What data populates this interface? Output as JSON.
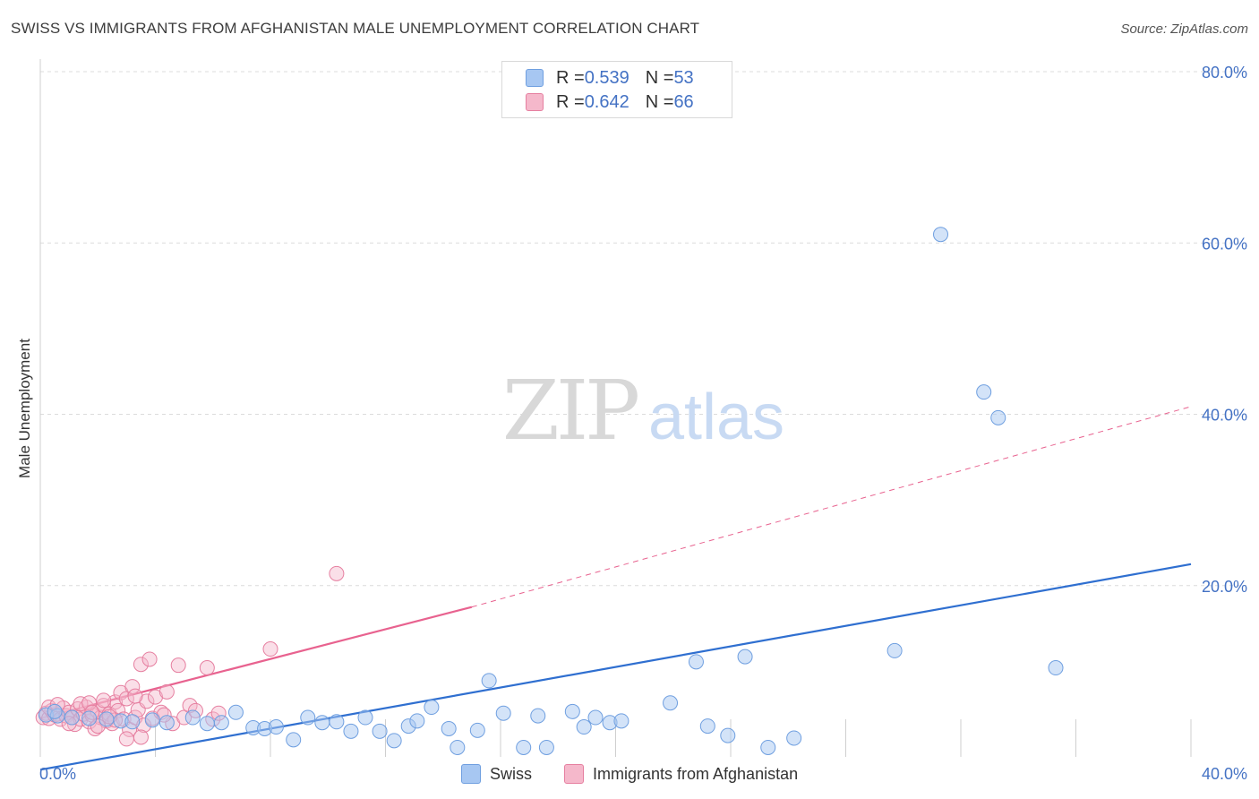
{
  "title": "SWISS VS IMMIGRANTS FROM AFGHANISTAN MALE UNEMPLOYMENT CORRELATION CHART",
  "source": "Source: ZipAtlas.com",
  "watermark": {
    "zip": "ZIP",
    "atlas": "atlas"
  },
  "legend": {
    "rows": [
      {
        "r_label": "R = ",
        "r_value": "0.539",
        "n_label": "N = ",
        "n_value": "53",
        "color": "#a7c7f2"
      },
      {
        "r_label": "R = ",
        "r_value": "0.642",
        "n_label": "N = ",
        "n_value": "66",
        "color": "#f5b8cb"
      }
    ]
  },
  "bottom_legend": {
    "swiss": "Swiss",
    "afghan": "Immigrants from Afghanistan"
  },
  "colors": {
    "swiss_fill": "#a7c7f2",
    "swiss_stroke": "#6f9fe0",
    "swiss_line": "#2f6fd0",
    "afghan_fill": "#f5b8cb",
    "afghan_stroke": "#e67fa0",
    "afghan_line": "#e8628f",
    "tick_label": "#4472c4",
    "grid": "#dcdcdc"
  },
  "chart_data": {
    "type": "scatter",
    "title": "SWISS VS IMMIGRANTS FROM AFGHANISTAN MALE UNEMPLOYMENT CORRELATION CHART",
    "xlabel": "",
    "ylabel": "Male Unemployment",
    "xlim": [
      0,
      40
    ],
    "ylim": [
      0,
      80
    ],
    "x_ticks": [
      {
        "value": 0,
        "label": "0.0%"
      },
      {
        "value": 40,
        "label": "40.0%"
      }
    ],
    "y_ticks": [
      {
        "value": 20,
        "label": "20.0%"
      },
      {
        "value": 40,
        "label": "40.0%"
      },
      {
        "value": 60,
        "label": "60.0%"
      },
      {
        "value": 80,
        "label": "80.0%"
      }
    ],
    "grid": true,
    "legend_position": "top-center",
    "series": [
      {
        "name": "Swiss",
        "r": 0.539,
        "n": 53,
        "trend": {
          "x": [
            0,
            40
          ],
          "y": [
            -1.5,
            22.5
          ],
          "style": "solid"
        },
        "points": [
          [
            0.2,
            4.9
          ],
          [
            0.6,
            4.8
          ],
          [
            1.1,
            4.6
          ],
          [
            1.7,
            4.5
          ],
          [
            2.3,
            4.4
          ],
          [
            2.8,
            4.2
          ],
          [
            3.2,
            4.1
          ],
          [
            3.9,
            4.3
          ],
          [
            4.4,
            4.0
          ],
          [
            5.3,
            4.6
          ],
          [
            5.8,
            3.9
          ],
          [
            6.3,
            4.0
          ],
          [
            6.8,
            5.2
          ],
          [
            7.4,
            3.4
          ],
          [
            7.8,
            3.3
          ],
          [
            8.2,
            3.5
          ],
          [
            8.8,
            2.0
          ],
          [
            9.3,
            4.6
          ],
          [
            9.8,
            4.0
          ],
          [
            10.3,
            4.1
          ],
          [
            10.8,
            3.0
          ],
          [
            11.3,
            4.6
          ],
          [
            11.8,
            3.0
          ],
          [
            12.3,
            1.9
          ],
          [
            12.8,
            3.6
          ],
          [
            13.1,
            4.2
          ],
          [
            13.6,
            5.8
          ],
          [
            14.2,
            3.3
          ],
          [
            14.5,
            1.1
          ],
          [
            15.2,
            3.1
          ],
          [
            15.6,
            8.9
          ],
          [
            16.1,
            5.1
          ],
          [
            16.8,
            1.1
          ],
          [
            17.3,
            4.8
          ],
          [
            17.6,
            1.1
          ],
          [
            18.5,
            5.3
          ],
          [
            18.9,
            3.5
          ],
          [
            19.3,
            4.6
          ],
          [
            19.8,
            4.0
          ],
          [
            20.2,
            4.2
          ],
          [
            21.9,
            6.3
          ],
          [
            22.8,
            11.1
          ],
          [
            23.2,
            3.6
          ],
          [
            23.9,
            2.5
          ],
          [
            24.5,
            11.7
          ],
          [
            25.3,
            1.1
          ],
          [
            26.2,
            2.2
          ],
          [
            29.7,
            12.4
          ],
          [
            31.3,
            61.0
          ],
          [
            32.8,
            42.6
          ],
          [
            33.3,
            39.6
          ],
          [
            35.3,
            10.4
          ],
          [
            0.5,
            5.3
          ]
        ]
      },
      {
        "name": "Immigrants from Afghanistan",
        "r": 0.642,
        "n": 66,
        "trend": {
          "x": [
            0,
            15
          ],
          "y": [
            4.5,
            17.5
          ],
          "style": "solid",
          "extension": {
            "x": [
              15,
              40
            ],
            "y": [
              17.5,
              40.9
            ],
            "style": "dashed"
          }
        },
        "points": [
          [
            0.1,
            4.6
          ],
          [
            0.2,
            5.1
          ],
          [
            0.3,
            4.5
          ],
          [
            0.4,
            5.4
          ],
          [
            0.5,
            4.9
          ],
          [
            0.6,
            5.0
          ],
          [
            0.7,
            4.4
          ],
          [
            0.8,
            5.7
          ],
          [
            0.9,
            4.8
          ],
          [
            1.0,
            5.2
          ],
          [
            1.1,
            4.6
          ],
          [
            1.2,
            3.8
          ],
          [
            1.3,
            5.6
          ],
          [
            1.4,
            4.4
          ],
          [
            1.5,
            5.0
          ],
          [
            1.6,
            5.8
          ],
          [
            1.7,
            4.1
          ],
          [
            1.8,
            4.9
          ],
          [
            1.9,
            3.3
          ],
          [
            2.0,
            5.3
          ],
          [
            2.1,
            4.6
          ],
          [
            2.2,
            6.0
          ],
          [
            2.3,
            4.2
          ],
          [
            2.4,
            5.0
          ],
          [
            2.5,
            3.9
          ],
          [
            2.6,
            6.4
          ],
          [
            2.7,
            5.4
          ],
          [
            2.8,
            7.5
          ],
          [
            2.9,
            4.4
          ],
          [
            3.0,
            6.8
          ],
          [
            3.1,
            3.2
          ],
          [
            3.2,
            8.2
          ],
          [
            3.3,
            4.6
          ],
          [
            3.4,
            5.5
          ],
          [
            3.5,
            10.8
          ],
          [
            3.6,
            3.7
          ],
          [
            3.7,
            6.5
          ],
          [
            3.8,
            11.4
          ],
          [
            3.9,
            4.5
          ],
          [
            4.0,
            7.0
          ],
          [
            4.2,
            5.2
          ],
          [
            4.4,
            7.6
          ],
          [
            4.6,
            3.9
          ],
          [
            4.8,
            10.7
          ],
          [
            5.0,
            4.6
          ],
          [
            5.2,
            6.0
          ],
          [
            5.4,
            5.4
          ],
          [
            5.8,
            10.4
          ],
          [
            6.0,
            4.4
          ],
          [
            6.2,
            5.1
          ],
          [
            8.0,
            12.6
          ],
          [
            10.3,
            21.4
          ],
          [
            3.0,
            2.1
          ],
          [
            3.5,
            2.3
          ],
          [
            1.4,
            6.2
          ],
          [
            2.0,
            3.6
          ],
          [
            0.3,
            5.8
          ],
          [
            1.7,
            6.3
          ],
          [
            2.6,
            4.3
          ],
          [
            3.3,
            7.1
          ],
          [
            4.3,
            4.9
          ],
          [
            1.0,
            3.9
          ],
          [
            0.6,
            6.1
          ],
          [
            2.2,
            6.6
          ],
          [
            1.8,
            5.2
          ],
          [
            2.4,
            4.7
          ]
        ]
      }
    ]
  }
}
